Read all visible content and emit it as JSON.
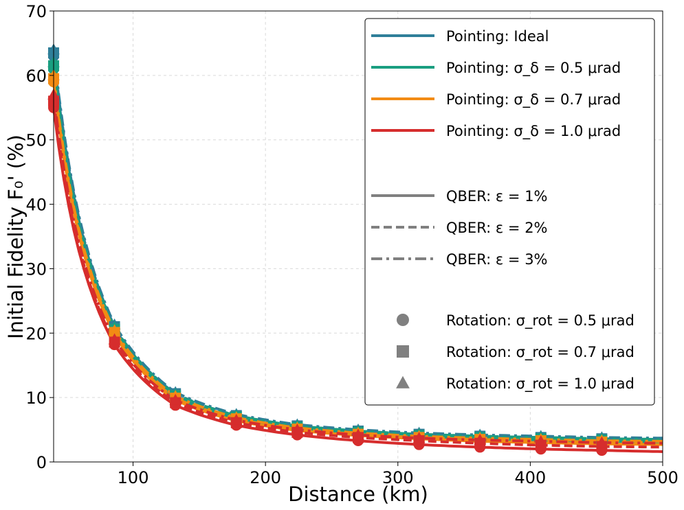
{
  "chart_data": {
    "type": "line",
    "title": "",
    "xlabel": "Distance (km)",
    "ylabel": "Initial Fidelity F₀' (%)",
    "xlim": [
      40,
      500
    ],
    "ylim": [
      0,
      70
    ],
    "xticks": [
      100,
      200,
      300,
      400,
      500
    ],
    "yticks": [
      0,
      10,
      20,
      30,
      40,
      50,
      60,
      70
    ],
    "grid": true,
    "x_marker_positions": [
      40,
      86,
      132,
      178,
      224,
      270,
      316,
      362,
      408,
      454
    ],
    "series": [
      {
        "name": "Pointing: Ideal",
        "color": "#2f7f99",
        "curves": [
          {
            "qber": "1%",
            "linestyle": "solid",
            "x": [
              40,
              86,
              132,
              178,
              224,
              270,
              316,
              362,
              408,
              454,
              500
            ],
            "y": [
              63,
              20.8,
              10.3,
              6.9,
              5.4,
              4.6,
              4.1,
              3.8,
              3.6,
              3.4,
              3.3
            ]
          },
          {
            "qber": "2%",
            "linestyle": "dashed",
            "x": [
              40,
              86,
              132,
              178,
              224,
              270,
              316,
              362,
              408,
              454,
              500
            ],
            "y": [
              63.5,
              21.0,
              10.6,
              7.2,
              5.6,
              4.8,
              4.3,
              4.0,
              3.8,
              3.6,
              3.5
            ]
          },
          {
            "qber": "3%",
            "linestyle": "dashdot",
            "x": [
              40,
              86,
              132,
              178,
              224,
              270,
              316,
              362,
              408,
              454,
              500
            ],
            "y": [
              64,
              21.3,
              10.8,
              7.4,
              5.8,
              5.0,
              4.5,
              4.2,
              4.0,
              3.8,
              3.7
            ]
          }
        ]
      },
      {
        "name": "Pointing: σ_δ = 0.5 μrad",
        "color": "#1a9e80",
        "curves": [
          {
            "qber": "1%",
            "linestyle": "solid",
            "x": [
              40,
              86,
              132,
              178,
              224,
              270,
              316,
              362,
              408,
              454,
              500
            ],
            "y": [
              61,
              20.3,
              10.0,
              6.7,
              5.2,
              4.4,
              3.9,
              3.6,
              3.4,
              3.2,
              3.1
            ]
          },
          {
            "qber": "2%",
            "linestyle": "dashed",
            "x": [
              40,
              86,
              132,
              178,
              224,
              270,
              316,
              362,
              408,
              454,
              500
            ],
            "y": [
              61.5,
              20.6,
              10.3,
              7.0,
              5.4,
              4.6,
              4.1,
              3.8,
              3.6,
              3.4,
              3.3
            ]
          },
          {
            "qber": "3%",
            "linestyle": "dashdot",
            "x": [
              40,
              86,
              132,
              178,
              224,
              270,
              316,
              362,
              408,
              454,
              500
            ],
            "y": [
              62,
              20.9,
              10.5,
              7.2,
              5.6,
              4.8,
              4.3,
              4.0,
              3.8,
              3.6,
              3.5
            ]
          }
        ]
      },
      {
        "name": "Pointing: σ_δ = 0.7 μrad",
        "color": "#f28b14",
        "curves": [
          {
            "qber": "1%",
            "linestyle": "solid",
            "x": [
              40,
              86,
              132,
              178,
              224,
              270,
              316,
              362,
              408,
              454,
              500
            ],
            "y": [
              59,
              19.8,
              9.6,
              6.4,
              4.9,
              4.1,
              3.6,
              3.2,
              3.0,
              2.8,
              2.7
            ]
          },
          {
            "qber": "2%",
            "linestyle": "dashed",
            "x": [
              40,
              86,
              132,
              178,
              224,
              270,
              316,
              362,
              408,
              454,
              500
            ],
            "y": [
              59.5,
              20.1,
              9.9,
              6.7,
              5.1,
              4.3,
              3.8,
              3.5,
              3.3,
              3.1,
              3.0
            ]
          },
          {
            "qber": "3%",
            "linestyle": "dashdot",
            "x": [
              40,
              86,
              132,
              178,
              224,
              270,
              316,
              362,
              408,
              454,
              500
            ],
            "y": [
              60,
              20.4,
              10.2,
              6.9,
              5.3,
              4.5,
              4.0,
              3.7,
              3.5,
              3.3,
              3.2
            ]
          }
        ]
      },
      {
        "name": "Pointing: σ_δ = 1.0 μrad",
        "color": "#d62d2d",
        "curves": [
          {
            "qber": "1%",
            "linestyle": "solid",
            "x": [
              40,
              86,
              132,
              178,
              224,
              270,
              316,
              362,
              408,
              454,
              500
            ],
            "y": [
              55,
              18.2,
              8.8,
              5.7,
              4.2,
              3.3,
              2.7,
              2.3,
              2.0,
              1.8,
              1.6
            ]
          },
          {
            "qber": "2%",
            "linestyle": "dashed",
            "x": [
              40,
              86,
              132,
              178,
              224,
              270,
              316,
              362,
              408,
              454,
              500
            ],
            "y": [
              56,
              18.6,
              9.2,
              6.1,
              4.6,
              3.8,
              3.3,
              2.9,
              2.6,
              2.4,
              2.3
            ]
          },
          {
            "qber": "3%",
            "linestyle": "dashdot",
            "x": [
              40,
              86,
              132,
              178,
              224,
              270,
              316,
              362,
              408,
              454,
              500
            ],
            "y": [
              57,
              19.0,
              9.6,
              6.5,
              5.0,
              4.2,
              3.7,
              3.4,
              3.2,
              3.0,
              2.9
            ]
          }
        ]
      }
    ],
    "legend": {
      "placement": "top-right",
      "pointing": [
        {
          "label": "Pointing: Ideal",
          "color": "#2f7f99"
        },
        {
          "label": "Pointing: σ_δ = 0.5 μrad",
          "color": "#1a9e80"
        },
        {
          "label": "Pointing: σ_δ = 0.7 μrad",
          "color": "#f28b14"
        },
        {
          "label": "Pointing: σ_δ = 1.0 μrad",
          "color": "#d62d2d"
        }
      ],
      "qber": [
        {
          "label": "QBER: ε = 1%",
          "linestyle": "solid"
        },
        {
          "label": "QBER: ε = 2%",
          "linestyle": "dashed"
        },
        {
          "label": "QBER: ε = 3%",
          "linestyle": "dashdot"
        }
      ],
      "rotation": [
        {
          "label": "Rotation: σ_rot = 0.5 μrad",
          "marker": "circle"
        },
        {
          "label": "Rotation: σ_rot = 0.7 μrad",
          "marker": "square"
        },
        {
          "label": "Rotation: σ_rot = 1.0 μrad",
          "marker": "triangle"
        }
      ],
      "neutral_color": "#808080"
    }
  }
}
